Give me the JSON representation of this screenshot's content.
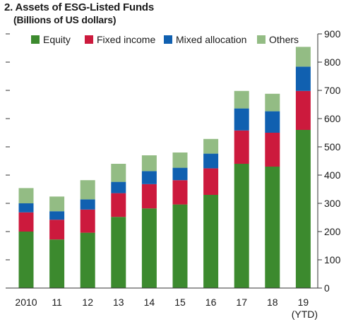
{
  "chart_data": {
    "type": "bar",
    "stacked": true,
    "title": "2. Assets of ESG-Listed Funds",
    "subtitle": "(Billions of US dollars)",
    "categories": [
      "2010",
      "11",
      "12",
      "13",
      "14",
      "15",
      "16",
      "17",
      "18",
      "19"
    ],
    "category_sublabels": [
      "",
      "",
      "",
      "",
      "",
      "",
      "",
      "",
      "",
      "(YTD)"
    ],
    "series": [
      {
        "name": "Equity",
        "color": "#3c8a2e",
        "values": [
          200,
          172,
          196,
          252,
          282,
          296,
          330,
          440,
          430,
          560
        ]
      },
      {
        "name": "Fixed income",
        "color": "#cc1a3d",
        "values": [
          68,
          70,
          82,
          84,
          86,
          86,
          94,
          118,
          120,
          138
        ]
      },
      {
        "name": "Mixed allocation",
        "color": "#1060b0",
        "values": [
          32,
          30,
          36,
          40,
          46,
          44,
          52,
          78,
          76,
          86
        ]
      },
      {
        "name": "Others",
        "color": "#93bc84",
        "values": [
          54,
          52,
          68,
          64,
          56,
          54,
          52,
          62,
          62,
          70
        ]
      }
    ],
    "y_ticks": [
      0,
      100,
      200,
      300,
      400,
      500,
      600,
      700,
      800,
      900
    ],
    "ylim": [
      0,
      900
    ],
    "y_axis_side": "right",
    "grid": false,
    "legend_position": "top"
  }
}
